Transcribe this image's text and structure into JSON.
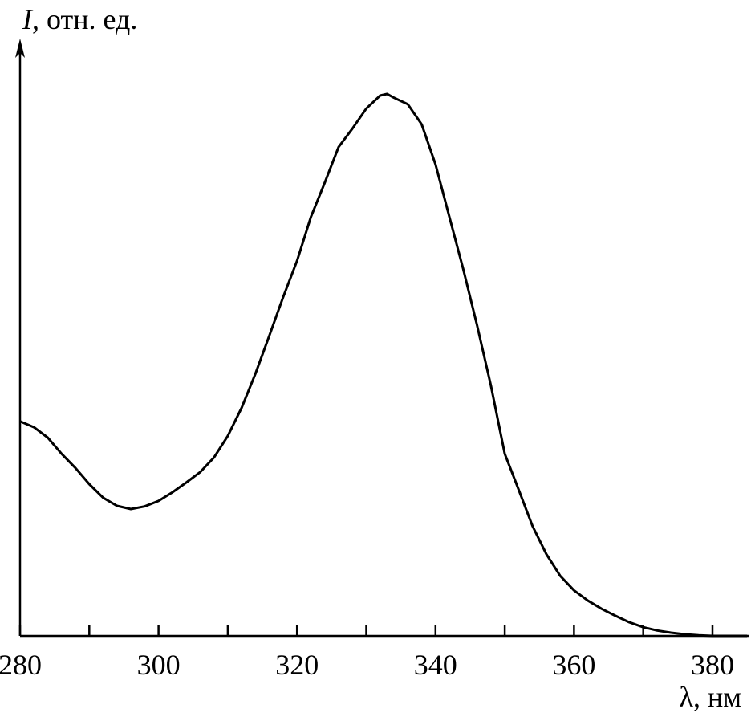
{
  "chart_data": {
    "type": "line",
    "title": "",
    "ylabel_symbol": "I",
    "ylabel_rest": ", отн. ед.",
    "xlabel": "λ, нм",
    "xlim": [
      280,
      385
    ],
    "ylim": [
      0,
      1.09
    ],
    "x_tick_labels": [
      "280",
      "300",
      "320",
      "340",
      "360",
      "380"
    ],
    "x_tick_values": [
      280,
      300,
      320,
      340,
      360,
      380
    ],
    "x_minor_ticks": [
      290,
      310,
      330,
      350,
      370
    ],
    "grid": false,
    "line_color": "#000000",
    "series": [
      {
        "x": [
          280,
          282,
          284,
          286,
          288,
          290,
          292,
          294,
          296,
          298,
          300,
          302,
          304,
          306,
          308,
          310,
          312,
          314,
          316,
          318,
          320,
          322,
          324,
          326,
          328,
          330,
          332,
          333,
          334,
          336,
          338,
          340,
          342,
          344,
          346,
          348,
          350,
          352,
          354,
          356,
          358,
          360,
          362,
          364,
          366,
          368,
          370,
          372,
          374,
          376,
          378,
          380,
          385
        ],
        "y": [
          0.396,
          0.385,
          0.366,
          0.336,
          0.31,
          0.28,
          0.255,
          0.24,
          0.234,
          0.239,
          0.249,
          0.265,
          0.283,
          0.302,
          0.329,
          0.369,
          0.421,
          0.484,
          0.554,
          0.625,
          0.692,
          0.773,
          0.836,
          0.902,
          0.936,
          0.973,
          0.997,
          1.0,
          0.993,
          0.981,
          0.944,
          0.87,
          0.773,
          0.677,
          0.573,
          0.462,
          0.336,
          0.27,
          0.203,
          0.151,
          0.111,
          0.084,
          0.065,
          0.05,
          0.037,
          0.025,
          0.016,
          0.01,
          0.006,
          0.003,
          0.001,
          0.0,
          0.0
        ]
      }
    ]
  }
}
